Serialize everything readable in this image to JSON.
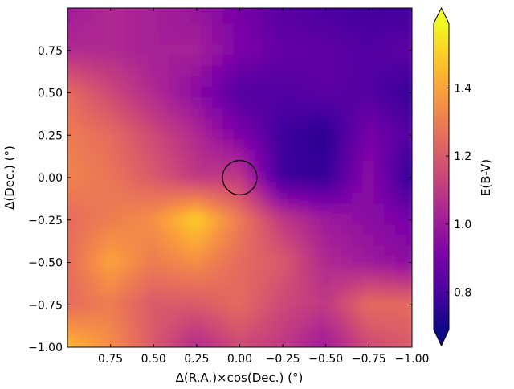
{
  "chart_data": {
    "type": "heatmap",
    "title": "",
    "xlabel": "Δ(R.A.)×cos(Dec.) (°)",
    "ylabel": "Δ(Dec.) (°)",
    "xlim": [
      1.0,
      -1.0
    ],
    "ylim": [
      -1.0,
      1.0
    ],
    "xticks": [
      0.75,
      0.5,
      0.25,
      0.0,
      -0.25,
      -0.5,
      -0.75,
      -1.0
    ],
    "xtick_labels": [
      "0.75",
      "0.50",
      "0.25",
      "0.00",
      "−0.25",
      "−0.50",
      "−0.75",
      "−1.00"
    ],
    "yticks": [
      -1.0,
      -0.75,
      -0.5,
      -0.25,
      0.0,
      0.25,
      0.5,
      0.75
    ],
    "ytick_labels": [
      "−1.00",
      "−0.75",
      "−0.50",
      "−0.25",
      "0.00",
      "0.25",
      "0.50",
      "0.75"
    ],
    "grid": false,
    "colormap": "plasma",
    "colorbar": {
      "label": "E(B-V)",
      "range": [
        0.69,
        1.59
      ],
      "ticks": [
        0.8,
        1.0,
        1.2,
        1.4
      ],
      "tick_labels": [
        "0.8",
        "1.0",
        "1.2",
        "1.4"
      ],
      "extend": "both",
      "under_color": "#0d0887",
      "over_color": "#f0f921"
    },
    "marker": {
      "shape": "circle",
      "x": 0.0,
      "y": 0.0,
      "radius": 0.1
    },
    "x": [
      1.0,
      0.75,
      0.5,
      0.25,
      0.0,
      -0.25,
      -0.5,
      -0.75,
      -1.0
    ],
    "y": [
      1.0,
      0.75,
      0.5,
      0.25,
      0.0,
      -0.25,
      -0.5,
      -0.75,
      -1.0
    ],
    "z": [
      [
        1.0,
        1.05,
        1.02,
        0.98,
        0.9,
        0.83,
        0.8,
        0.78,
        0.78
      ],
      [
        1.05,
        1.05,
        1.02,
        1.02,
        0.92,
        0.86,
        0.85,
        0.82,
        0.85
      ],
      [
        1.25,
        1.15,
        1.05,
        0.95,
        0.82,
        0.82,
        0.84,
        0.82,
        0.76
      ],
      [
        1.3,
        1.25,
        1.15,
        1.05,
        0.92,
        0.78,
        0.74,
        0.9,
        0.82
      ],
      [
        1.32,
        1.28,
        1.2,
        1.1,
        1.1,
        0.78,
        0.76,
        0.95,
        0.75
      ],
      [
        1.25,
        1.3,
        1.35,
        1.5,
        1.3,
        1.1,
        1.0,
        0.95,
        0.9
      ],
      [
        1.25,
        1.4,
        1.3,
        1.35,
        1.25,
        1.2,
        1.05,
        1.0,
        0.95
      ],
      [
        1.25,
        1.3,
        1.2,
        1.2,
        1.25,
        1.15,
        1.1,
        1.25,
        1.25
      ],
      [
        1.45,
        1.35,
        1.2,
        1.05,
        1.15,
        1.1,
        1.0,
        1.15,
        1.2
      ]
    ]
  }
}
